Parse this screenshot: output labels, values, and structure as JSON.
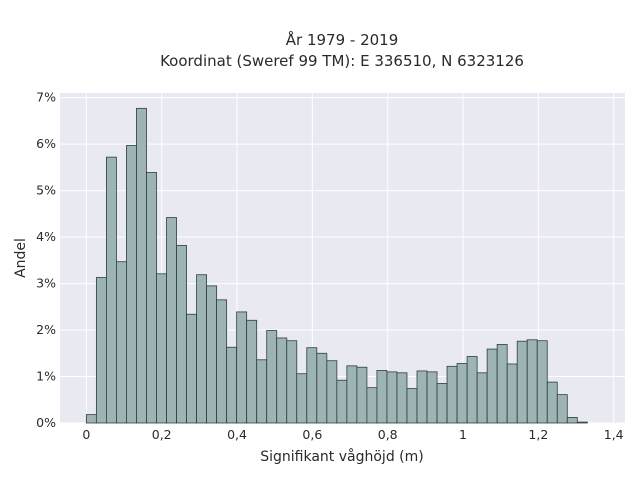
{
  "chart_data": {
    "type": "bar",
    "title_lines": [
      "År 1979 - 2019",
      "Koordinat (Sweref 99 TM): E 336510, N 6323126"
    ],
    "xlabel": "Signifikant våghöjd (m)",
    "ylabel": "Andel",
    "xlim": [
      -0.07,
      1.43
    ],
    "ylim": [
      0,
      7.1
    ],
    "x_ticks": [
      0,
      0.2,
      0.4,
      0.6,
      0.8,
      1,
      1.2,
      1.4
    ],
    "x_tick_labels": [
      "0",
      "0,2",
      "0,4",
      "0,6",
      "0,8",
      "1",
      "1,2",
      "1,4"
    ],
    "y_ticks": [
      0,
      1,
      2,
      3,
      4,
      5,
      6,
      7
    ],
    "y_tick_labels": [
      "0%",
      "1%",
      "2%",
      "3%",
      "4%",
      "5%",
      "6%",
      "7%"
    ],
    "bin_start": 0.0,
    "bin_width": 0.0266,
    "values": [
      0.18,
      3.13,
      5.72,
      3.47,
      5.97,
      6.77,
      5.39,
      3.21,
      4.42,
      3.82,
      2.34,
      3.19,
      2.95,
      2.65,
      1.63,
      2.39,
      2.21,
      1.36,
      1.99,
      1.83,
      1.77,
      1.06,
      1.62,
      1.5,
      1.34,
      0.92,
      1.23,
      1.2,
      0.76,
      1.13,
      1.1,
      1.08,
      0.74,
      1.12,
      1.1,
      0.85,
      1.22,
      1.28,
      1.43,
      1.08,
      1.59,
      1.69,
      1.27,
      1.76,
      1.79,
      1.77,
      0.88,
      0.61,
      0.12,
      0.02
    ],
    "grid": true,
    "legend": "none",
    "colors": {
      "bar_fill": "#9cb4b3",
      "bar_edge": "#2f3d3c",
      "plot_bg": "#e9e9f1",
      "grid": "#ffffff"
    }
  }
}
